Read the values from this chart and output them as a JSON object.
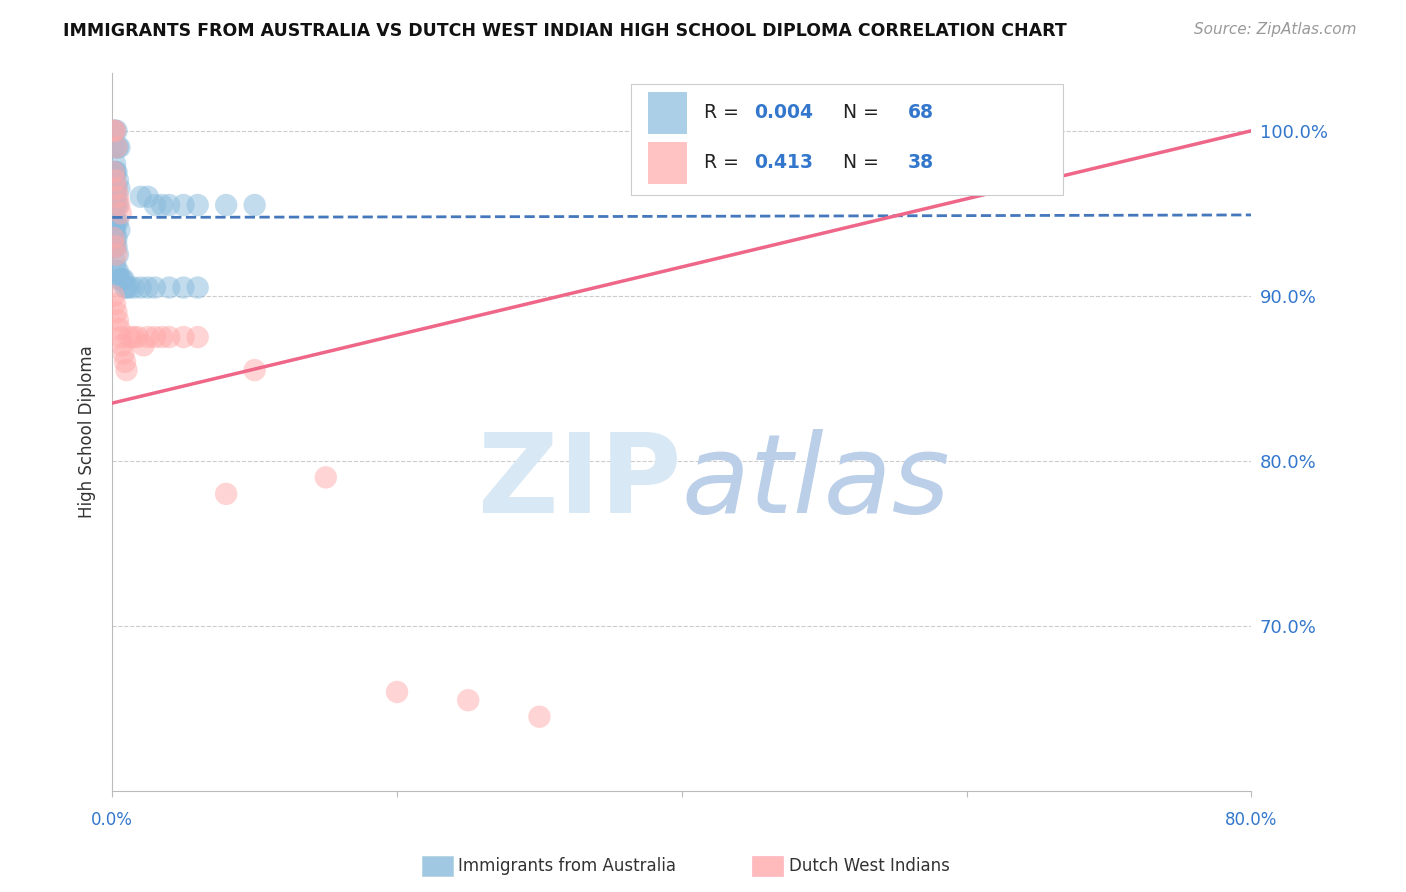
{
  "title": "IMMIGRANTS FROM AUSTRALIA VS DUTCH WEST INDIAN HIGH SCHOOL DIPLOMA CORRELATION CHART",
  "source": "Source: ZipAtlas.com",
  "ylabel": "High School Diploma",
  "yticks": [
    1.0,
    0.9,
    0.8,
    0.7
  ],
  "ytick_labels": [
    "100.0%",
    "90.0%",
    "80.0%",
    "70.0%"
  ],
  "xmin": 0.0,
  "xmax": 0.8,
  "ymin": 0.6,
  "ymax": 1.035,
  "color_blue": "#88BBDD",
  "color_pink": "#FFAAAA",
  "color_blue_line": "#4477BB",
  "color_pink_line": "#EE6688",
  "color_blue_text": "#3377CC",
  "blue_x": [
    0.001,
    0.002,
    0.001,
    0.003,
    0.002,
    0.003,
    0.004,
    0.005,
    0.002,
    0.001,
    0.001,
    0.002,
    0.003,
    0.001,
    0.002,
    0.004,
    0.003,
    0.005,
    0.001,
    0.001,
    0.002,
    0.001,
    0.002,
    0.003,
    0.001,
    0.002,
    0.003,
    0.004,
    0.001,
    0.002,
    0.001,
    0.002,
    0.003,
    0.004,
    0.005,
    0.001,
    0.002,
    0.003,
    0.001,
    0.002,
    0.003,
    0.004,
    0.002,
    0.003,
    0.004,
    0.005,
    0.006,
    0.007,
    0.008,
    0.009,
    0.01,
    0.012,
    0.015,
    0.02,
    0.025,
    0.03,
    0.04,
    0.05,
    0.06,
    0.02,
    0.025,
    0.03,
    0.035,
    0.04,
    0.05,
    0.06,
    0.08,
    0.1
  ],
  "blue_y": [
    1.0,
    1.0,
    0.99,
    1.0,
    0.98,
    0.99,
    0.99,
    0.99,
    0.975,
    0.97,
    0.975,
    0.975,
    0.975,
    0.965,
    0.965,
    0.97,
    0.965,
    0.965,
    0.965,
    0.96,
    0.96,
    0.955,
    0.955,
    0.96,
    0.95,
    0.955,
    0.955,
    0.955,
    0.945,
    0.945,
    0.94,
    0.94,
    0.945,
    0.945,
    0.94,
    0.94,
    0.935,
    0.935,
    0.93,
    0.93,
    0.93,
    0.925,
    0.92,
    0.915,
    0.915,
    0.91,
    0.91,
    0.91,
    0.91,
    0.905,
    0.905,
    0.905,
    0.905,
    0.905,
    0.905,
    0.905,
    0.905,
    0.905,
    0.905,
    0.96,
    0.96,
    0.955,
    0.955,
    0.955,
    0.955,
    0.955,
    0.955,
    0.955
  ],
  "pink_x": [
    0.001,
    0.002,
    0.003,
    0.001,
    0.002,
    0.003,
    0.004,
    0.005,
    0.006,
    0.001,
    0.002,
    0.003,
    0.001,
    0.002,
    0.003,
    0.004,
    0.005,
    0.006,
    0.007,
    0.008,
    0.009,
    0.01,
    0.012,
    0.015,
    0.018,
    0.022,
    0.025,
    0.03,
    0.035,
    0.04,
    0.05,
    0.06,
    0.08,
    0.1,
    0.15,
    0.2,
    0.25,
    0.3
  ],
  "pink_y": [
    1.0,
    1.0,
    0.99,
    0.975,
    0.97,
    0.965,
    0.96,
    0.955,
    0.95,
    0.935,
    0.93,
    0.925,
    0.9,
    0.895,
    0.89,
    0.885,
    0.88,
    0.875,
    0.87,
    0.865,
    0.86,
    0.855,
    0.875,
    0.875,
    0.875,
    0.87,
    0.875,
    0.875,
    0.875,
    0.875,
    0.875,
    0.875,
    0.78,
    0.855,
    0.79,
    0.66,
    0.655,
    0.645
  ],
  "blue_trend_x": [
    0.0,
    0.32,
    0.8
  ],
  "blue_trend_y": [
    0.9475,
    0.948,
    0.949
  ],
  "pink_trend_x": [
    0.0,
    0.8
  ],
  "pink_trend_y": [
    0.835,
    1.0
  ]
}
